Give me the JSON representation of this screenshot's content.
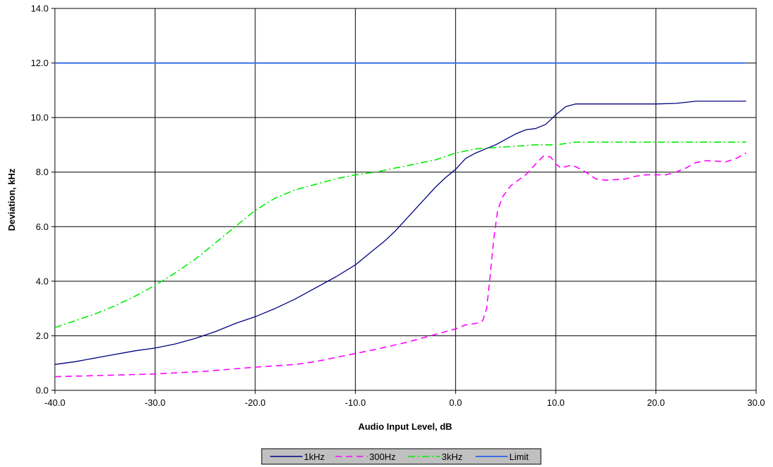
{
  "chart_data": {
    "type": "line",
    "title": "",
    "xlabel": "Audio Input Level, dB",
    "ylabel": "Deviation, kHz",
    "xlim": [
      -40,
      30
    ],
    "ylim": [
      0,
      14
    ],
    "x_ticks": [
      "-40.0",
      "-30.0",
      "-20.0",
      "-10.0",
      "0.0",
      "10.0",
      "20.0",
      "30.0"
    ],
    "y_ticks": [
      "0.0",
      "2.0",
      "4.0",
      "6.0",
      "8.0",
      "10.0",
      "12.0",
      "14.0"
    ],
    "grid": true,
    "legend_position": "bottom",
    "series": [
      {
        "name": "1kHz",
        "color": "#000080",
        "dash": "solid",
        "points": [
          [
            -40,
            0.95
          ],
          [
            -38,
            1.05
          ],
          [
            -35,
            1.25
          ],
          [
            -32,
            1.45
          ],
          [
            -30,
            1.55
          ],
          [
            -28,
            1.7
          ],
          [
            -26,
            1.9
          ],
          [
            -24,
            2.15
          ],
          [
            -22,
            2.45
          ],
          [
            -20,
            2.7
          ],
          [
            -18,
            3.0
          ],
          [
            -16,
            3.35
          ],
          [
            -14,
            3.75
          ],
          [
            -12,
            4.15
          ],
          [
            -10,
            4.6
          ],
          [
            -9,
            4.9
          ],
          [
            -8,
            5.2
          ],
          [
            -7,
            5.5
          ],
          [
            -6,
            5.85
          ],
          [
            -5,
            6.25
          ],
          [
            -4,
            6.65
          ],
          [
            -3,
            7.05
          ],
          [
            -2,
            7.45
          ],
          [
            -1,
            7.8
          ],
          [
            0,
            8.1
          ],
          [
            1,
            8.5
          ],
          [
            2,
            8.7
          ],
          [
            3,
            8.85
          ],
          [
            4,
            9.0
          ],
          [
            5,
            9.2
          ],
          [
            6,
            9.4
          ],
          [
            7,
            9.55
          ],
          [
            8,
            9.6
          ],
          [
            9,
            9.75
          ],
          [
            10,
            10.1
          ],
          [
            11,
            10.4
          ],
          [
            12,
            10.5
          ],
          [
            15,
            10.5
          ],
          [
            20,
            10.5
          ],
          [
            22,
            10.52
          ],
          [
            24,
            10.6
          ],
          [
            29,
            10.6
          ]
        ]
      },
      {
        "name": "300Hz",
        "color": "#ff00ff",
        "dash": "dashed",
        "points": [
          [
            -40,
            0.5
          ],
          [
            -35,
            0.55
          ],
          [
            -30,
            0.6
          ],
          [
            -25,
            0.7
          ],
          [
            -20,
            0.85
          ],
          [
            -16,
            0.95
          ],
          [
            -14,
            1.05
          ],
          [
            -10,
            1.35
          ],
          [
            -8,
            1.5
          ],
          [
            -5,
            1.75
          ],
          [
            -2,
            2.05
          ],
          [
            0,
            2.25
          ],
          [
            1,
            2.4
          ],
          [
            2,
            2.45
          ],
          [
            2.7,
            2.55
          ],
          [
            3.1,
            3.0
          ],
          [
            3.4,
            4.0
          ],
          [
            3.8,
            5.5
          ],
          [
            4.2,
            6.6
          ],
          [
            4.7,
            7.1
          ],
          [
            5.5,
            7.5
          ],
          [
            7,
            7.9
          ],
          [
            8,
            8.3
          ],
          [
            8.8,
            8.6
          ],
          [
            9.5,
            8.55
          ],
          [
            10,
            8.3
          ],
          [
            10.5,
            8.15
          ],
          [
            11,
            8.2
          ],
          [
            11.5,
            8.25
          ],
          [
            12,
            8.2
          ],
          [
            13,
            8.0
          ],
          [
            14,
            7.75
          ],
          [
            15,
            7.7
          ],
          [
            17,
            7.75
          ],
          [
            18,
            7.85
          ],
          [
            19,
            7.9
          ],
          [
            21,
            7.9
          ],
          [
            22,
            8.0
          ],
          [
            23,
            8.15
          ],
          [
            24,
            8.35
          ],
          [
            25,
            8.42
          ],
          [
            26,
            8.4
          ],
          [
            27,
            8.38
          ],
          [
            28,
            8.5
          ],
          [
            29,
            8.7
          ]
        ]
      },
      {
        "name": "3kHz",
        "color": "#00ee00",
        "dash": "dashdot",
        "points": [
          [
            -40,
            2.3
          ],
          [
            -38,
            2.55
          ],
          [
            -36,
            2.8
          ],
          [
            -34,
            3.1
          ],
          [
            -32,
            3.45
          ],
          [
            -30,
            3.85
          ],
          [
            -28,
            4.3
          ],
          [
            -26,
            4.8
          ],
          [
            -24,
            5.4
          ],
          [
            -22,
            6.0
          ],
          [
            -20,
            6.6
          ],
          [
            -18,
            7.05
          ],
          [
            -16,
            7.35
          ],
          [
            -14,
            7.55
          ],
          [
            -12,
            7.75
          ],
          [
            -10,
            7.9
          ],
          [
            -8,
            8.0
          ],
          [
            -6,
            8.15
          ],
          [
            -4,
            8.3
          ],
          [
            -2,
            8.45
          ],
          [
            0,
            8.7
          ],
          [
            2,
            8.85
          ],
          [
            4,
            8.9
          ],
          [
            6,
            8.95
          ],
          [
            8,
            9.0
          ],
          [
            10,
            9.0
          ],
          [
            11,
            9.05
          ],
          [
            12,
            9.1
          ],
          [
            15,
            9.1
          ],
          [
            20,
            9.1
          ],
          [
            25,
            9.1
          ],
          [
            29,
            9.1
          ]
        ]
      },
      {
        "name": "Limit",
        "color": "#3a6ee8",
        "dash": "solid",
        "points": [
          [
            -40,
            12.0
          ],
          [
            29,
            12.0
          ]
        ]
      }
    ]
  }
}
